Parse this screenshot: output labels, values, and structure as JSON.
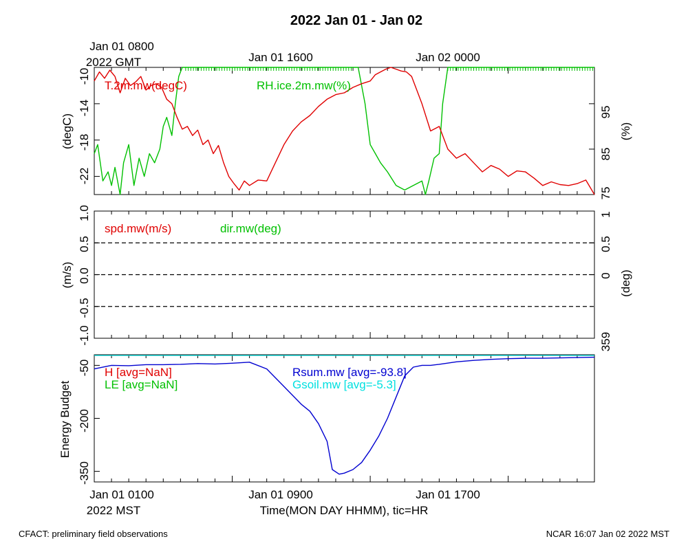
{
  "page": {
    "title": "2022 Jan 01 - Jan 02",
    "top_time_labels": [
      "Jan 01 0800",
      "2022 GMT",
      "Jan 01 1600",
      "Jan 02 0000"
    ],
    "bottom_time_labels": [
      "Jan 01 0100",
      "2022 MST",
      "Jan 01 0900",
      "Jan 01 1700"
    ],
    "xlabel": "Time(MON DAY HHMM), tic=HR",
    "footer_left": "CFACT: preliminary field observations",
    "footer_right": "NCAR 16:07 Jan 02 2022 MST"
  },
  "colors": {
    "red": "#e00000",
    "green": "#00c000",
    "blue": "#0000d0",
    "cyan": "#00e0e0",
    "axis": "#000000"
  },
  "chart_data": [
    {
      "type": "line",
      "panel": "temperature-humidity",
      "ylabel": "(degC)",
      "ylabel_right": "(%)",
      "ylim": [
        -24,
        -10
      ],
      "ylim_right": [
        75,
        103
      ],
      "yticks": [
        "-10",
        "-14",
        "-18",
        "-22"
      ],
      "yticks_right": [
        "95",
        "85",
        "75"
      ],
      "series": [
        {
          "name": "T.2m.mw(degC)",
          "axis": "left",
          "x_hours": [
            0,
            0.3,
            0.6,
            0.9,
            1.2,
            1.5,
            1.8,
            2.1,
            2.4,
            2.7,
            3.0,
            3.3,
            3.6,
            3.9,
            4.2,
            4.5,
            4.8,
            5.1,
            5.4,
            5.7,
            6.0,
            6.3,
            6.6,
            6.9,
            7.2,
            7.5,
            7.8,
            8.1,
            8.4,
            8.7,
            9.0,
            9.5,
            10.0,
            10.5,
            11.0,
            11.5,
            12.0,
            12.5,
            13.0,
            13.5,
            14.0,
            14.5,
            15.0,
            15.5,
            16.0,
            16.3,
            16.6,
            16.9,
            17.2,
            17.5,
            17.8,
            18.1,
            18.4,
            18.7,
            19.0,
            19.5,
            20.0,
            20.5,
            21.0,
            21.5,
            22.0,
            22.5,
            23.0,
            23.5,
            24.0,
            24.5,
            25.0,
            25.5,
            26.0,
            26.5,
            27.0,
            27.5,
            28.0,
            28.5,
            29.0
          ],
          "values": [
            -11.5,
            -10.5,
            -11.2,
            -10.3,
            -11.0,
            -12.8,
            -11.2,
            -12.0,
            -11.6,
            -11.0,
            -12.5,
            -12.0,
            -11.8,
            -12.2,
            -13.5,
            -14.0,
            -15.5,
            -16.8,
            -16.5,
            -17.5,
            -16.9,
            -18.5,
            -18.0,
            -19.5,
            -18.6,
            -20.5,
            -22.0,
            -22.8,
            -23.5,
            -22.5,
            -23.0,
            -22.4,
            -22.5,
            -20.5,
            -18.5,
            -17.0,
            -16.0,
            -15.3,
            -14.3,
            -13.5,
            -13.0,
            -12.8,
            -12.2,
            -11.8,
            -11.5,
            -10.8,
            -10.5,
            -10.2,
            -10.0,
            -10.2,
            -10.4,
            -10.5,
            -11.0,
            -12.5,
            -14.0,
            -17.0,
            -16.5,
            -19.0,
            -20.0,
            -19.5,
            -20.5,
            -21.5,
            -20.8,
            -21.2,
            -22.0,
            -21.4,
            -21.5,
            -22.2,
            -23.0,
            -22.6,
            -22.9,
            -23.0,
            -22.8,
            -22.4,
            -24.0
          ]
        },
        {
          "name": "RH.ice.2m.mw(%)",
          "axis": "right",
          "x_hours": [
            0,
            0.2,
            0.5,
            0.8,
            1.0,
            1.2,
            1.5,
            1.7,
            2.0,
            2.3,
            2.6,
            2.9,
            3.2,
            3.5,
            3.8,
            4.0,
            4.2,
            4.5,
            4.7,
            4.9,
            5.1,
            5.3,
            5.5,
            15.0,
            15.3,
            15.5,
            15.7,
            16.0,
            16.3,
            16.6,
            17.0,
            17.5,
            18.0,
            18.5,
            19.0,
            19.2,
            19.4,
            19.7,
            20.0,
            20.2,
            20.5,
            29.0
          ],
          "values": [
            84,
            86,
            78,
            80,
            77,
            81,
            75,
            82,
            86,
            77,
            83,
            79,
            84,
            82,
            85,
            90,
            92,
            88,
            95,
            101,
            103,
            103,
            103,
            103,
            103,
            99,
            95,
            86,
            84,
            82,
            80,
            77,
            76,
            77,
            78,
            75,
            78,
            83,
            84,
            95,
            103,
            103
          ]
        }
      ]
    },
    {
      "type": "line",
      "panel": "wind",
      "ylabel": "(m/s)",
      "ylabel_right": "(deg)",
      "ylim": [
        -1.0,
        1.0
      ],
      "yticks": [
        "1.0",
        "0.5",
        "0.0",
        "-0.5",
        "-1.0"
      ],
      "yticks_right": [
        "1",
        "0.5",
        "0",
        "359"
      ],
      "hlines": [
        0.5,
        0.0,
        -0.5
      ],
      "series": [
        {
          "name": "spd.mw(m/s)",
          "values": []
        },
        {
          "name": "dir.mw(deg)",
          "values": []
        }
      ]
    },
    {
      "type": "line",
      "panel": "energy-budget",
      "ylabel": "Energy Budget",
      "ylim": [
        -380,
        -20
      ],
      "yticks": [
        "-50",
        "-200",
        "-350"
      ],
      "series": [
        {
          "name": "H",
          "label": "H [avg=NaN]",
          "values": []
        },
        {
          "name": "LE",
          "label": "LE [avg=NaN]",
          "values": []
        },
        {
          "name": "Rsum.mw",
          "label": "Rsum.mw [avg=-93.8]",
          "x_hours": [
            0,
            1,
            2,
            3,
            4,
            5,
            6,
            7,
            8,
            9,
            10,
            11,
            12,
            12.5,
            13,
            13.5,
            13.8,
            14.2,
            14.5,
            15.0,
            15.5,
            16.0,
            16.5,
            17.0,
            17.5,
            18.0,
            18.5,
            19.0,
            19.5,
            20.0,
            21.0,
            22.0,
            23.0,
            24.0,
            25.0,
            26.0,
            27.0,
            28.0,
            29.0
          ],
          "values": [
            -60,
            -50,
            -51,
            -48,
            -48,
            -47,
            -45,
            -46,
            -44,
            -41,
            -60,
            -110,
            -160,
            -180,
            -215,
            -265,
            -345,
            -358,
            -355,
            -345,
            -325,
            -290,
            -250,
            -200,
            -140,
            -80,
            -55,
            -50,
            -50,
            -47,
            -40,
            -36,
            -33,
            -31,
            -30,
            -30,
            -29,
            -28,
            -27
          ]
        },
        {
          "name": "Gsoil.mw",
          "label": "Gsoil.mw [avg=-5.3]",
          "values": []
        }
      ]
    }
  ]
}
